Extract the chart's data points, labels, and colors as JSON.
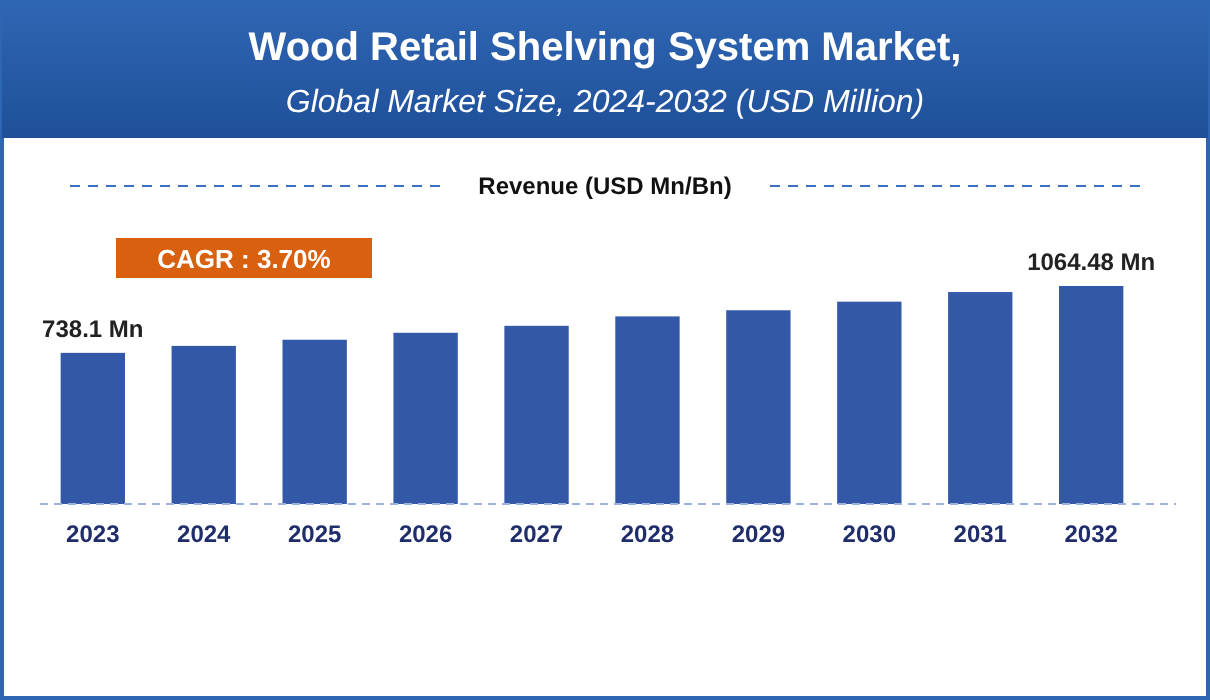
{
  "chart_data": {
    "type": "bar",
    "title": "Wood Retail Shelving System Market,",
    "subtitle": "Global Market Size, 2024-2032 (USD Million)",
    "annotations": [
      "Revenue (USD Mn/Bn)",
      "CAGR : 3.70%"
    ],
    "categories": [
      "2023",
      "2024",
      "2025",
      "2026",
      "2027",
      "2028",
      "2029",
      "2030",
      "2031",
      "2032"
    ],
    "values": [
      738.1,
      772,
      802,
      836,
      870,
      916,
      946,
      988,
      1035,
      1064.48
    ],
    "value_labels": [
      "738.1 Mn",
      null,
      null,
      null,
      null,
      null,
      null,
      null,
      null,
      "1064.48 Mn"
    ],
    "color": "#3358a8"
  }
}
